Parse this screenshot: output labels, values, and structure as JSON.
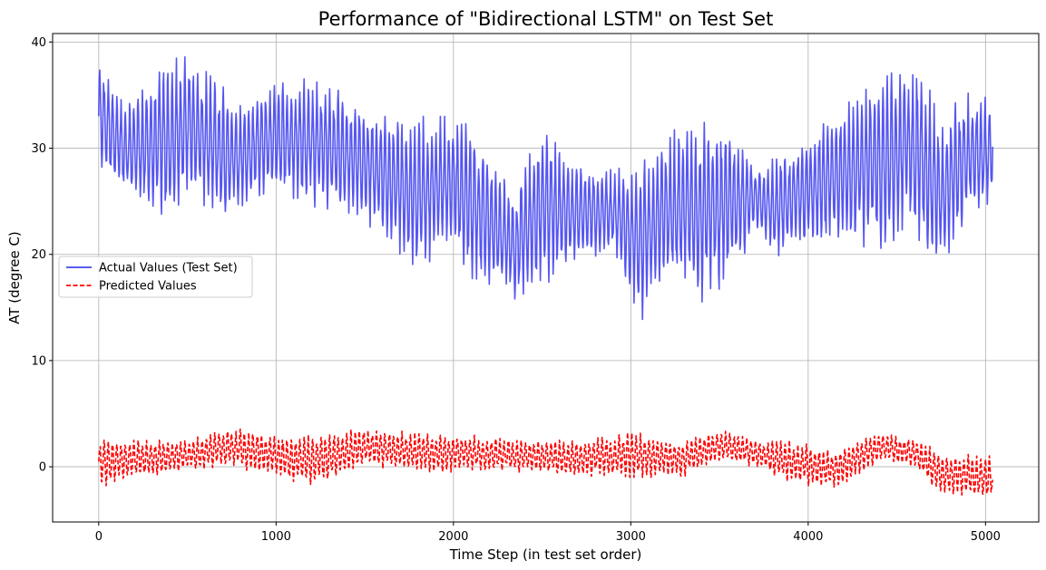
{
  "chart_data": {
    "type": "line",
    "title": "Performance of \"Bidirectional LSTM\" on Test Set",
    "xlabel": "Time Step (in test set order)",
    "ylabel": "AT (degree C)",
    "xlim": [
      -260,
      5300
    ],
    "ylim": [
      -5.2,
      40.8
    ],
    "xticks": [
      0,
      1000,
      2000,
      3000,
      4000,
      5000
    ],
    "yticks": [
      0,
      10,
      20,
      30,
      40
    ],
    "grid": true,
    "legend_position": "center-left",
    "x_range": [
      0,
      5040
    ],
    "series": [
      {
        "name": "Actual Values (Test Set)",
        "color": "#4444ee",
        "style": "solid",
        "envelope_points": [
          {
            "x": 0,
            "min": 28.5,
            "max": 38.0
          },
          {
            "x": 150,
            "min": 25.5,
            "max": 34.0
          },
          {
            "x": 400,
            "min": 22.5,
            "max": 38.6
          },
          {
            "x": 500,
            "min": 26.0,
            "max": 38.6
          },
          {
            "x": 700,
            "min": 23.0,
            "max": 36.0
          },
          {
            "x": 800,
            "min": 24.5,
            "max": 34.0
          },
          {
            "x": 1000,
            "min": 26.0,
            "max": 36.0
          },
          {
            "x": 1200,
            "min": 24.5,
            "max": 36.8
          },
          {
            "x": 1400,
            "min": 24.0,
            "max": 35.0
          },
          {
            "x": 1600,
            "min": 21.8,
            "max": 33.0
          },
          {
            "x": 1800,
            "min": 18.2,
            "max": 33.0
          },
          {
            "x": 2000,
            "min": 21.5,
            "max": 33.0
          },
          {
            "x": 2100,
            "min": 17.3,
            "max": 32.0
          },
          {
            "x": 2350,
            "min": 15.6,
            "max": 26.0
          },
          {
            "x": 2500,
            "min": 17.0,
            "max": 32.5
          },
          {
            "x": 2700,
            "min": 19.0,
            "max": 28.5
          },
          {
            "x": 2900,
            "min": 20.0,
            "max": 28.0
          },
          {
            "x": 3050,
            "min": 13.5,
            "max": 28.5
          },
          {
            "x": 3200,
            "min": 17.0,
            "max": 31.5
          },
          {
            "x": 3400,
            "min": 15.5,
            "max": 32.5
          },
          {
            "x": 3600,
            "min": 18.0,
            "max": 31.5
          },
          {
            "x": 3700,
            "min": 23.0,
            "max": 28.0
          },
          {
            "x": 3800,
            "min": 19.5,
            "max": 29.0
          },
          {
            "x": 4000,
            "min": 21.0,
            "max": 31.0
          },
          {
            "x": 4200,
            "min": 21.0,
            "max": 34.0
          },
          {
            "x": 4400,
            "min": 20.5,
            "max": 37.2
          },
          {
            "x": 4600,
            "min": 21.5,
            "max": 38.8
          },
          {
            "x": 4750,
            "min": 17.7,
            "max": 33.0
          },
          {
            "x": 4900,
            "min": 23.0,
            "max": 35.5
          },
          {
            "x": 5040,
            "min": 25.0,
            "max": 34.5
          }
        ]
      },
      {
        "name": "Predicted Values",
        "color": "#ff0000",
        "style": "dashed",
        "envelope_points": [
          {
            "x": 0,
            "min": -2.0,
            "max": 2.7
          },
          {
            "x": 200,
            "min": -1.0,
            "max": 2.5
          },
          {
            "x": 500,
            "min": -0.5,
            "max": 2.5
          },
          {
            "x": 750,
            "min": 0.0,
            "max": 3.8
          },
          {
            "x": 1000,
            "min": -1.0,
            "max": 3.0
          },
          {
            "x": 1200,
            "min": -1.8,
            "max": 3.0
          },
          {
            "x": 1500,
            "min": 0.0,
            "max": 3.7
          },
          {
            "x": 1800,
            "min": -0.5,
            "max": 3.2
          },
          {
            "x": 2100,
            "min": -0.5,
            "max": 3.0
          },
          {
            "x": 2400,
            "min": -0.5,
            "max": 2.5
          },
          {
            "x": 2700,
            "min": -1.0,
            "max": 2.5
          },
          {
            "x": 3000,
            "min": -1.0,
            "max": 3.3
          },
          {
            "x": 3300,
            "min": -1.0,
            "max": 2.5
          },
          {
            "x": 3500,
            "min": 0.5,
            "max": 3.5
          },
          {
            "x": 3700,
            "min": 0.0,
            "max": 2.5
          },
          {
            "x": 3900,
            "min": -1.5,
            "max": 2.5
          },
          {
            "x": 4150,
            "min": -2.2,
            "max": 1.5
          },
          {
            "x": 4400,
            "min": 0.5,
            "max": 3.3
          },
          {
            "x": 4600,
            "min": 0.0,
            "max": 2.5
          },
          {
            "x": 4750,
            "min": -2.8,
            "max": 1.5
          },
          {
            "x": 5040,
            "min": -3.0,
            "max": 1.0
          }
        ]
      }
    ]
  }
}
